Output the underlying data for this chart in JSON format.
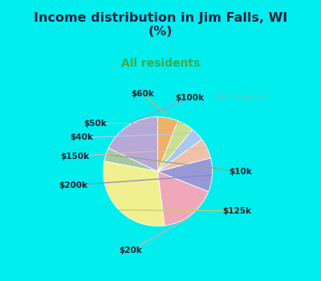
{
  "title": "Income distribution in Jim Falls, WI\n(%)",
  "subtitle": "All residents",
  "title_color": "#222244",
  "subtitle_color": "#44aa44",
  "bg_cyan": "#00EEEE",
  "bg_chart": "#d8efe8",
  "labels": [
    "$100k",
    "$10k",
    "$125k",
    "$20k",
    "$200k",
    "$150k",
    "$40k",
    "$50k",
    "$60k"
  ],
  "sizes": [
    18,
    4,
    30,
    17,
    10,
    6,
    4,
    5,
    6
  ],
  "colors": [
    "#b8a8d8",
    "#a8c8a0",
    "#f0f090",
    "#f0a8b8",
    "#9898d8",
    "#f0c0a8",
    "#a8c8f0",
    "#c8e090",
    "#f0b068"
  ],
  "startangle": 90,
  "figsize": [
    4.0,
    3.5
  ],
  "dpi": 100
}
